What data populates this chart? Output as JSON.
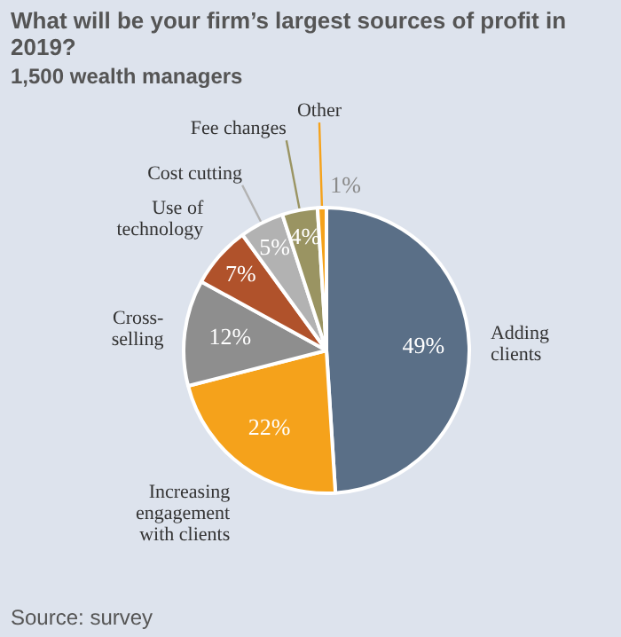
{
  "chart_data": {
    "type": "pie",
    "title": "What will be your firm’s largest sources of profit in 2019?",
    "subtitle": "1,500 wealth managers",
    "categories": [
      "Adding clients",
      "Increasing engagement with clients",
      "Cross-selling",
      "Use of technology",
      "Cost cutting",
      "Fee changes",
      "Other"
    ],
    "values": [
      49,
      22,
      12,
      7,
      5,
      4,
      1
    ],
    "colors": [
      "#5a6f87",
      "#f5a21b",
      "#8e8e8e",
      "#b0522b",
      "#b2b2b2",
      "#9a9462",
      "#f5a21b"
    ],
    "value_labels": [
      "49%",
      "22%",
      "12%",
      "7%",
      "5%",
      "4%",
      "1%"
    ],
    "legend": false,
    "annotations": [
      "Source: survey"
    ]
  }
}
